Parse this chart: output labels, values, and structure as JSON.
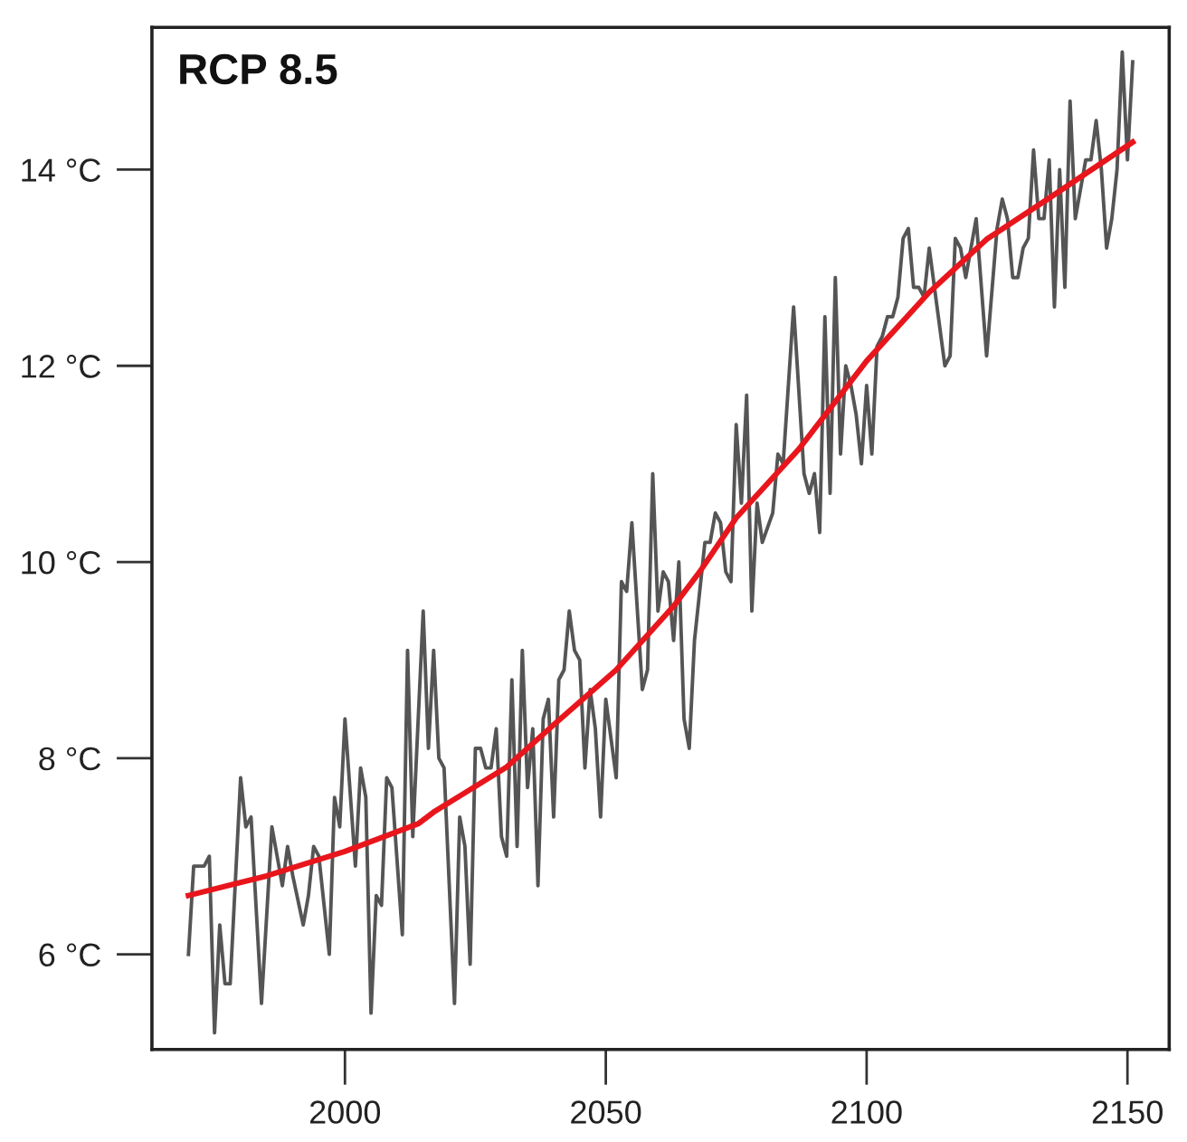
{
  "chart_data": {
    "type": "line",
    "title": "RCP 8.5",
    "xlim": [
      1963,
      2158
    ],
    "xticks": [
      2000,
      2050,
      2100,
      2150
    ],
    "ylim": [
      5.03,
      15.45
    ],
    "yticks": [
      {
        "value": 6,
        "label": "6 °C"
      },
      {
        "value": 8,
        "label": "8 °C"
      },
      {
        "value": 10,
        "label": "10 °C"
      },
      {
        "value": 12,
        "label": "12 °C"
      },
      {
        "value": 14,
        "label": "14 °C"
      }
    ],
    "grid": false,
    "legend": false,
    "marker": "none",
    "line_style": "solid",
    "series": [
      {
        "color": "#555555",
        "x": [
          1970,
          1971,
          1973,
          1974,
          1975,
          1976,
          1977,
          1978,
          1980,
          1981,
          1982,
          1984,
          1986,
          1988,
          1989,
          1990,
          1992,
          1993,
          1994,
          1995,
          1997,
          1998,
          1999,
          2000,
          2002,
          2003,
          2004,
          2005,
          2006,
          2007,
          2008,
          2009,
          2011,
          2012,
          2013,
          2015,
          2016,
          2017,
          2018,
          2019,
          2021,
          2022,
          2023,
          2024,
          2025,
          2026,
          2027,
          2028,
          2029,
          2030,
          2031,
          2032,
          2033,
          2034,
          2035,
          2036,
          2037,
          2038,
          2039,
          2040,
          2041,
          2042,
          2043,
          2044,
          2045,
          2046,
          2047,
          2048,
          2049,
          2050,
          2052,
          2053,
          2054,
          2055,
          2057,
          2058,
          2059,
          2060,
          2061,
          2062,
          2063,
          2064,
          2065,
          2066,
          2067,
          2069,
          2070,
          2071,
          2072,
          2073,
          2074,
          2075,
          2076,
          2077,
          2078,
          2079,
          2080,
          2082,
          2083,
          2084,
          2086,
          2088,
          2089,
          2090,
          2091,
          2092,
          2093,
          2094,
          2095,
          2096,
          2097,
          2098,
          2099,
          2100,
          2101,
          2102,
          2103,
          2104,
          2105,
          2106,
          2107,
          2108,
          2109,
          2110,
          2111,
          2112,
          2113,
          2115,
          2116,
          2117,
          2118,
          2119,
          2121,
          2123,
          2125,
          2126,
          2127,
          2128,
          2129,
          2130,
          2131,
          2132,
          2133,
          2134,
          2135,
          2136,
          2137,
          2138,
          2139,
          2140,
          2141,
          2142,
          2143,
          2144,
          2145,
          2146,
          2147,
          2148,
          2149,
          2150,
          2151
        ],
        "values": [
          6.0,
          6.9,
          6.9,
          7.0,
          5.2,
          6.3,
          5.7,
          5.7,
          7.8,
          7.3,
          7.4,
          5.5,
          7.3,
          6.7,
          7.1,
          6.8,
          6.3,
          6.6,
          7.1,
          7.0,
          6.0,
          7.6,
          7.3,
          8.4,
          6.9,
          7.9,
          7.6,
          5.4,
          6.6,
          6.5,
          7.8,
          7.7,
          6.2,
          9.1,
          7.2,
          9.5,
          8.1,
          9.1,
          8.0,
          7.9,
          5.5,
          7.4,
          7.1,
          5.9,
          8.1,
          8.1,
          7.9,
          7.9,
          8.3,
          7.2,
          7.0,
          8.8,
          7.1,
          9.1,
          7.7,
          8.3,
          6.7,
          8.4,
          8.6,
          7.4,
          8.8,
          8.9,
          9.5,
          9.1,
          9.0,
          7.9,
          8.7,
          8.3,
          7.4,
          8.6,
          7.8,
          9.8,
          9.7,
          10.4,
          8.7,
          8.9,
          10.9,
          9.5,
          9.9,
          9.8,
          9.2,
          10.0,
          8.4,
          8.1,
          9.2,
          10.2,
          10.2,
          10.5,
          10.4,
          9.9,
          9.8,
          11.4,
          10.6,
          11.7,
          9.5,
          10.6,
          10.2,
          10.5,
          11.1,
          11.0,
          12.6,
          10.9,
          10.7,
          10.9,
          10.3,
          12.5,
          10.7,
          12.9,
          11.1,
          12.0,
          11.8,
          11.5,
          11.0,
          11.8,
          11.1,
          12.2,
          12.3,
          12.5,
          12.5,
          12.7,
          13.3,
          13.4,
          12.8,
          12.8,
          12.7,
          13.2,
          12.8,
          12.0,
          12.1,
          13.3,
          13.2,
          12.9,
          13.5,
          12.1,
          13.4,
          13.7,
          13.5,
          12.9,
          12.9,
          13.2,
          13.3,
          14.2,
          13.5,
          13.5,
          14.1,
          12.6,
          14.0,
          12.8,
          14.7,
          13.5,
          13.8,
          14.1,
          14.1,
          14.5,
          14.0,
          13.2,
          13.5,
          14.0,
          15.2,
          14.1,
          15.1
        ]
      },
      {
        "color": "#e8161c",
        "x": [
          1970,
          1985,
          2000,
          2014,
          2017,
          2031,
          2040,
          2052,
          2063,
          2068,
          2075,
          2087,
          2100,
          2112,
          2123,
          2135,
          2151
        ],
        "values": [
          6.6,
          6.8,
          7.05,
          7.33,
          7.45,
          7.91,
          8.34,
          8.9,
          9.55,
          9.9,
          10.45,
          11.15,
          12.05,
          12.75,
          13.29,
          13.71,
          14.28
        ]
      }
    ]
  }
}
